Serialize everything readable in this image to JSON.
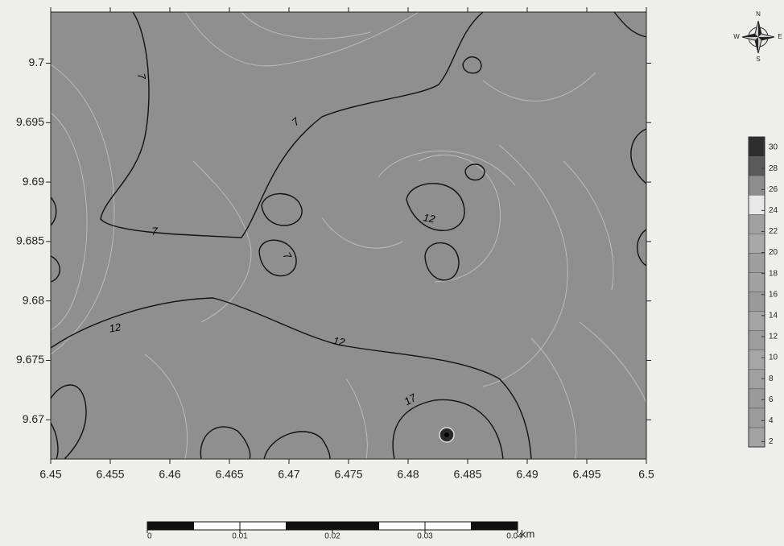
{
  "map": {
    "xticks": [
      6.45,
      6.455,
      6.46,
      6.465,
      6.47,
      6.475,
      6.48,
      6.485,
      6.49,
      6.495,
      6.5
    ],
    "xlim": [
      6.45,
      6.5
    ],
    "yticks": [
      9.67,
      9.675,
      9.68,
      9.685,
      9.69,
      9.695,
      9.7
    ],
    "ylim": [
      9.6667,
      9.7043
    ],
    "contour_labels": [
      7,
      7,
      7,
      7,
      12,
      12,
      12,
      17
    ],
    "colorbar": {
      "ticks": [
        2,
        4,
        6,
        8,
        10,
        12,
        14,
        16,
        18,
        20,
        22,
        24,
        26,
        28,
        30
      ],
      "lim": [
        1.5,
        31
      ],
      "colors": [
        "#a3a3a3",
        "#9c9c9c",
        "#9a9a9a",
        "#a0a0a0",
        "#a6a6a6",
        "#9d9d9d",
        "#a4a4a4",
        "#9a9a9a",
        "#a2a2a2",
        "#9e9e9e",
        "#a8a8a8",
        "#a0a0a0",
        "#e8e8e8",
        "#8e8e8e",
        "#5a5a5a",
        "#2e2e2e"
      ]
    },
    "scale_bar": {
      "ticks": [
        0,
        0.01,
        0.02,
        0.03,
        0.04
      ],
      "unit": "km"
    },
    "compass": {
      "north": "N",
      "south": "S",
      "east": "E",
      "west": "W"
    }
  }
}
